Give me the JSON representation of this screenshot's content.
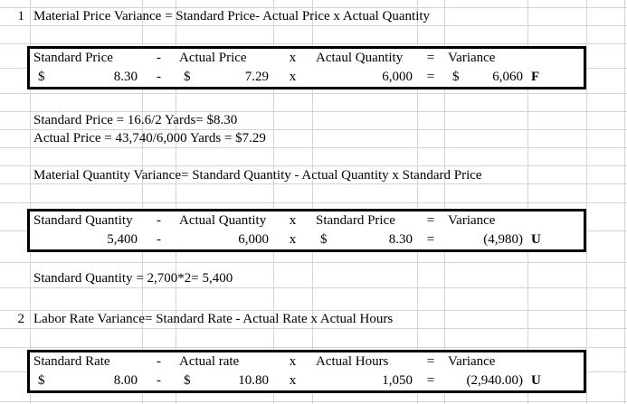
{
  "lines": {
    "l1": {
      "num": "1",
      "text": "Material Price Variance = Standard Price- Actual Price x Actual Quantity"
    },
    "note_standard_price": "Standard Price = 16.6/2 Yards= $8.30",
    "note_actual_price": "Actual Price = 43,740/6,000 Yards = $7.29",
    "l_mqv": "Material Quantity Variance= Standard Quantity - Actual Quantity x Standard Price",
    "note_standard_quantity": "Standard Quantity = 2,700*2= 5,400",
    "l2": {
      "num": "2",
      "text": "Labor Rate Variance= Standard Rate - Actual Rate x Actual Hours"
    }
  },
  "tables": [
    {
      "header": {
        "col1": "Standard Price",
        "op1": "-",
        "col2": "Actual Price",
        "op2": "x",
        "col3": "Actaul Quantity",
        "eq": "=",
        "col4": "Variance"
      },
      "values": {
        "v1": {
          "cur": "$",
          "num": "8.30"
        },
        "op1": "-",
        "v2": {
          "cur": "$",
          "num": "7.29"
        },
        "op2": "x",
        "v3": {
          "cur": "",
          "num": "6,000"
        },
        "eq": "=",
        "variance": {
          "cur": "$",
          "num": "6,060"
        },
        "flag": "F"
      }
    },
    {
      "header": {
        "col1": "Standard Quantity",
        "op1": "-",
        "col2": "Actual Quantity",
        "op2": "x",
        "col3": "Standard Price",
        "eq": "=",
        "col4": "Variance"
      },
      "values": {
        "v1": {
          "cur": "",
          "num": "5,400"
        },
        "op1": "-",
        "v2": {
          "cur": "",
          "num": "6,000"
        },
        "op2": "x",
        "v3": {
          "cur": "$",
          "num": "8.30"
        },
        "eq": "=",
        "variance": {
          "cur": "",
          "num": "(4,980)"
        },
        "flag": "U"
      }
    },
    {
      "header": {
        "col1": "Standard Rate",
        "op1": "-",
        "col2": "Actual rate",
        "op2": "x",
        "col3": "Actual Hours",
        "eq": "=",
        "col4": "Variance"
      },
      "values": {
        "v1": {
          "cur": "$",
          "num": "8.00"
        },
        "op1": "-",
        "v2": {
          "cur": "$",
          "num": "10.80"
        },
        "op2": "x",
        "v3": {
          "cur": "",
          "num": "1,050"
        },
        "eq": "=",
        "variance": {
          "cur": "",
          "num": "(2,940.00)"
        },
        "flag": "U"
      }
    }
  ],
  "colors": {
    "gridline": "#d4d4d4",
    "table_border": "#000000",
    "text": "#000000",
    "background": "#ffffff"
  }
}
